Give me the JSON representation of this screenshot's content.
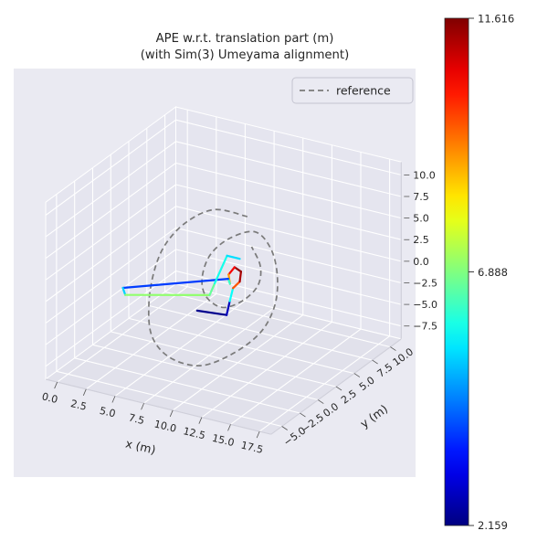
{
  "chart_data": {
    "type": "line3d",
    "title": "APE w.r.t. translation part (m)",
    "subtitle": "(with Sim(3) Umeyama alignment)",
    "xlabel": "x (m)",
    "ylabel": "y (m)",
    "x_ticks": [
      0.0,
      2.5,
      5.0,
      7.5,
      10.0,
      12.5,
      15.0,
      17.5
    ],
    "y_ticks": [
      -5.0,
      -2.5,
      0.0,
      2.5,
      5.0,
      7.5,
      10.0
    ],
    "z_ticks": [
      -7.5,
      -5.0,
      -2.5,
      0.0,
      2.5,
      5.0,
      7.5,
      10.0
    ],
    "x_range": [
      -1.0,
      18.5
    ],
    "y_range": [
      -6.5,
      11.5
    ],
    "z_range": [
      -9.0,
      11.5
    ],
    "view": {
      "elev": 25,
      "azim": -60
    },
    "grid": true,
    "legend_position": "upper right",
    "colorbar": {
      "min": 2.159,
      "mid": 6.888,
      "max": 11.616,
      "colormap": "jet"
    },
    "series": [
      {
        "name": "reference",
        "style": "dashed",
        "color": "#7a7a7a",
        "points": [
          [
            8.0,
            7.0,
            4.5
          ],
          [
            5.5,
            6.5,
            4.8
          ],
          [
            4.0,
            5.0,
            3.8
          ],
          [
            3.4,
            3.0,
            2.2
          ],
          [
            3.8,
            0.8,
            0.5
          ],
          [
            4.8,
            -1.5,
            -1.5
          ],
          [
            6.5,
            -3.8,
            -3.2
          ],
          [
            8.8,
            -5.0,
            -4.2
          ],
          [
            11.2,
            -4.6,
            -4.6
          ],
          [
            13.0,
            -3.0,
            -3.6
          ],
          [
            14.0,
            -0.8,
            -2.2
          ],
          [
            13.8,
            1.5,
            -0.6
          ],
          [
            12.6,
            3.8,
            1.0
          ],
          [
            11.0,
            5.5,
            2.6
          ],
          [
            9.2,
            6.2,
            3.6
          ],
          [
            7.8,
            5.0,
            3.2
          ],
          [
            7.2,
            3.2,
            2.2
          ],
          [
            7.6,
            1.4,
            0.8
          ],
          [
            8.6,
            0.3,
            -0.4
          ],
          [
            10.2,
            0.0,
            -1.0
          ],
          [
            11.4,
            0.9,
            -0.4
          ],
          [
            11.8,
            2.4,
            0.6
          ],
          [
            11.0,
            4.0,
            1.6
          ],
          [
            9.5,
            5.2,
            2.6
          ]
        ]
      },
      {
        "name": "trajectory_colored_by_ape",
        "style": "solid",
        "colormap": "jet",
        "points": [
          [
            8.1,
            -0.1,
            -2.0
          ],
          [
            10.4,
            0.3,
            -2.0
          ],
          [
            10.3,
            0.9,
            -0.8
          ],
          [
            10.2,
            1.5,
            0.3
          ],
          [
            10.6,
            1.8,
            1.0
          ],
          [
            10.4,
            2.3,
            1.8
          ],
          [
            9.9,
            2.2,
            2.2
          ],
          [
            9.7,
            1.7,
            1.6
          ],
          [
            10.0,
            1.4,
            0.8
          ],
          [
            9.6,
            1.8,
            1.0
          ],
          [
            2.8,
            -1.9,
            0.0
          ],
          [
            3.2,
            -2.2,
            -0.5
          ],
          [
            8.3,
            1.3,
            -1.0
          ],
          [
            9.5,
            0.1,
            1.5
          ],
          [
            9.0,
            2.6,
            3.0
          ],
          [
            10.1,
            2.6,
            3.0
          ]
        ],
        "ape": [
          2.159,
          2.4,
          3.0,
          8.5,
          10.8,
          11.616,
          11.2,
          9.8,
          8.2,
          4.2,
          3.6,
          7.0,
          7.1,
          6.2,
          5.6,
          5.2
        ]
      }
    ]
  }
}
